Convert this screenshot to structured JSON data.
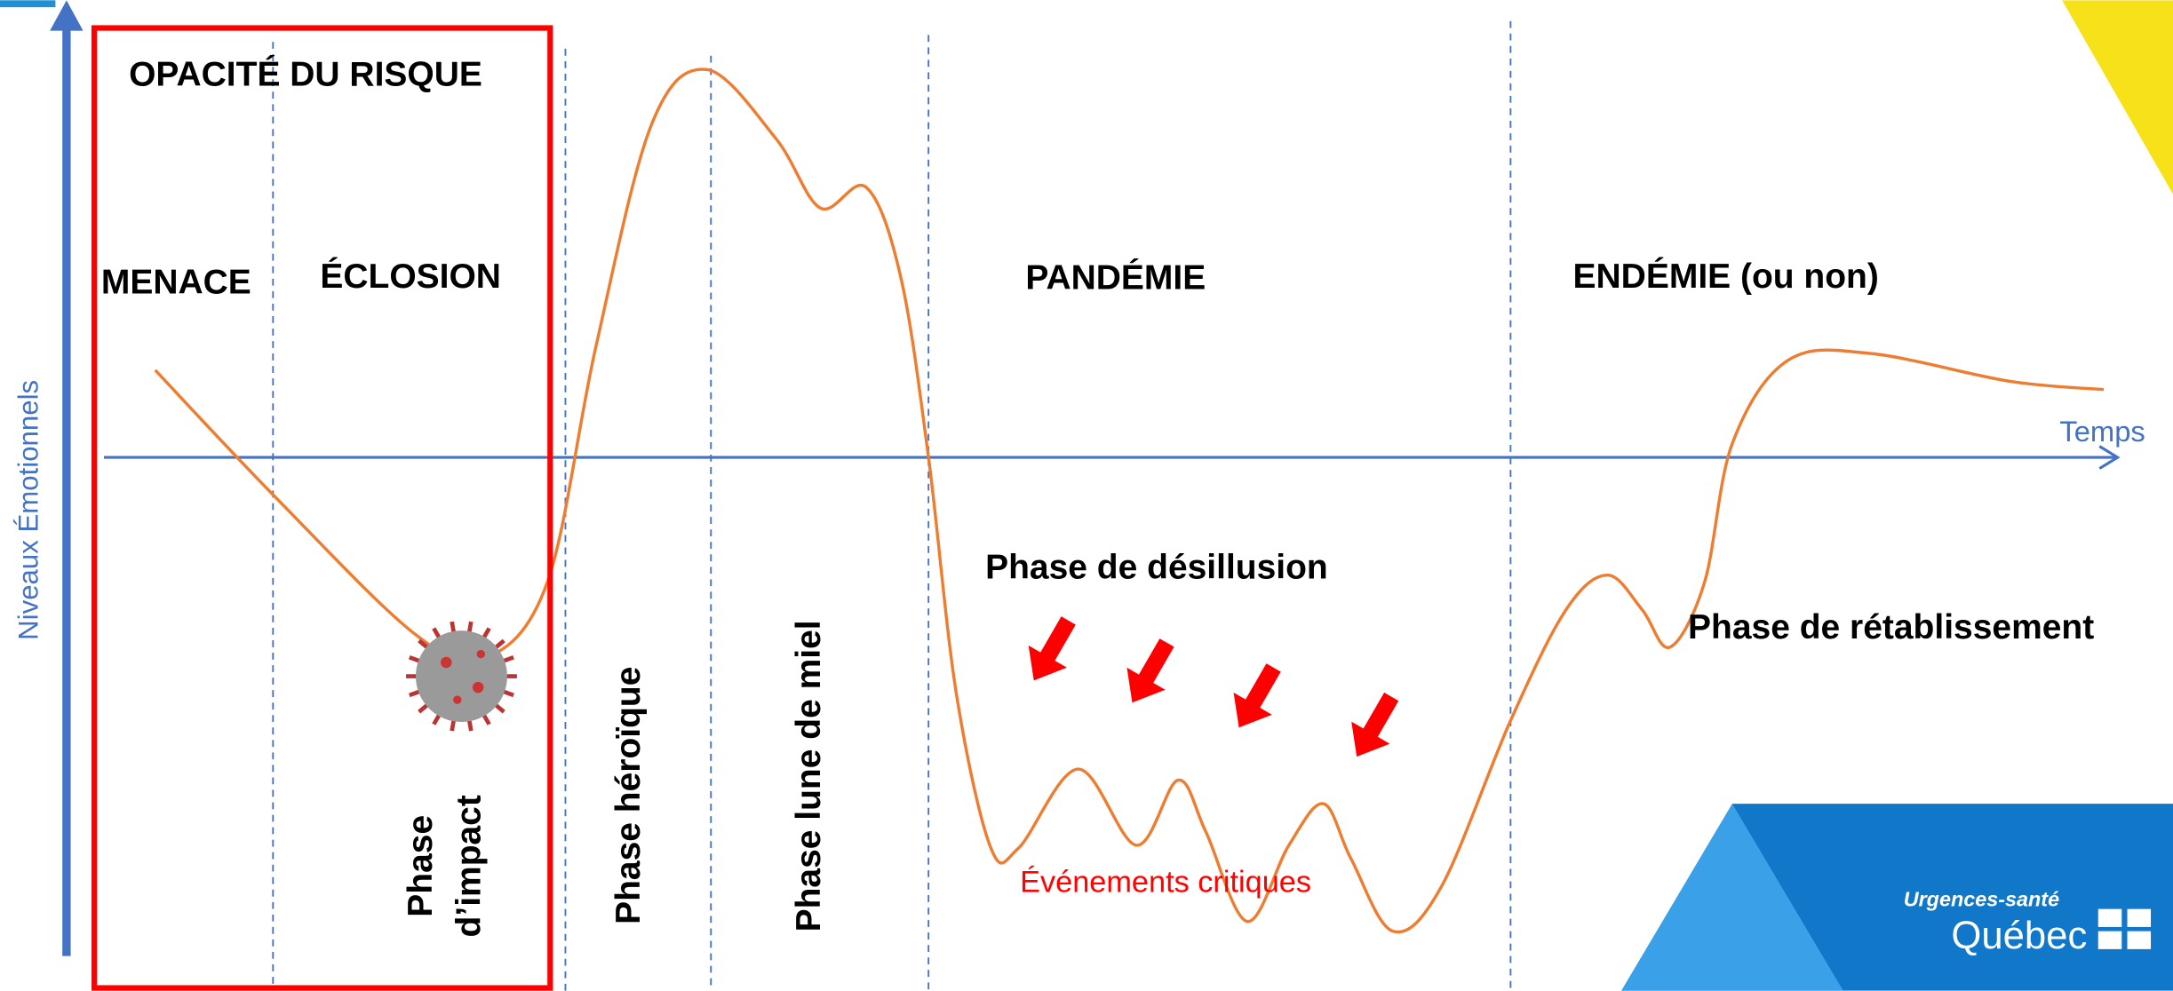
{
  "axes": {
    "y_label": "Niveaux Émotionnels",
    "x_label": "Temps"
  },
  "risk_box": {
    "title": "OPACITÉ DU RISQUE"
  },
  "stages": [
    "MENACE",
    "ÉCLOSION",
    "PANDÉMIE",
    "ENDÉMIE (ou non)"
  ],
  "phases": {
    "impact": [
      "Phase",
      "d’impact"
    ],
    "heroic": "Phase héroïque",
    "honeymoon": "Phase lune de miel",
    "disillusion": "Phase de désillusion",
    "recovery": "Phase de rétablissement"
  },
  "annotation": "Événements critiques",
  "logo": {
    "line1": "Urgences-santé",
    "line2": "Québec"
  }
}
